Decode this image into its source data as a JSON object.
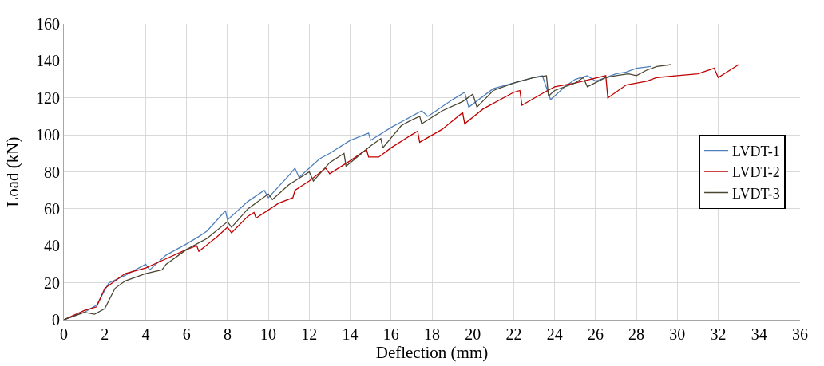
{
  "chart_data": {
    "type": "line",
    "xlabel": "Deflection (mm)",
    "ylabel": "Load (kN)",
    "xlim": [
      0,
      36
    ],
    "xticks": [
      0,
      2,
      4,
      6,
      8,
      10,
      12,
      14,
      16,
      18,
      20,
      22,
      24,
      26,
      28,
      30,
      32,
      34,
      36
    ],
    "ylim": [
      0,
      160
    ],
    "yticks": [
      0,
      20,
      40,
      60,
      80,
      100,
      120,
      140,
      160
    ],
    "grid": true,
    "legend": "right",
    "marker": "none",
    "line_style": "solid",
    "series": [
      {
        "name": "LVDT-1",
        "color": "#4f81bd",
        "x": [
          0,
          1,
          1.6,
          2.2,
          3,
          4,
          4.2,
          5,
          6,
          6.6,
          7,
          7.9,
          8,
          9,
          9.8,
          10,
          11,
          11.3,
          11.5,
          12.5,
          13,
          14,
          14.9,
          15,
          16,
          17,
          17.5,
          17.8,
          19,
          19.6,
          19.8,
          21,
          22,
          23,
          23.4,
          23.8,
          24.5,
          25,
          25.6,
          26,
          27,
          27.5,
          28,
          28.7
        ],
        "values": [
          0,
          4,
          8,
          20,
          24,
          30,
          27,
          35,
          41,
          45,
          48,
          59,
          54,
          64,
          70,
          66,
          78,
          82,
          77,
          87,
          90,
          97,
          101,
          97,
          104,
          110,
          113,
          110,
          119,
          123,
          115,
          125,
          128,
          131,
          132,
          119,
          126,
          130,
          132,
          129,
          133,
          134,
          136,
          137
        ]
      },
      {
        "name": "LVDT-2",
        "color": "#c00000",
        "x": [
          0,
          1,
          1.6,
          2,
          2.5,
          3,
          4,
          5,
          6,
          6.5,
          6.6,
          7.5,
          8,
          8.2,
          9,
          9.3,
          9.4,
          10.5,
          11.2,
          11.3,
          12,
          12.8,
          13,
          14,
          14.8,
          14.9,
          15.4,
          16,
          17,
          17.3,
          17.4,
          18.5,
          19.5,
          19.6,
          20.5,
          22,
          22.3,
          22.4,
          23.5,
          24,
          25,
          26.5,
          26.6,
          27.5,
          28.5,
          29,
          30,
          31,
          31.8,
          32,
          33
        ],
        "values": [
          0,
          5,
          7,
          17,
          21,
          25,
          28,
          33,
          38,
          40,
          37,
          45,
          50,
          47,
          56,
          58,
          55,
          63,
          66,
          70,
          75,
          82,
          79,
          86,
          92,
          88,
          88,
          93,
          100,
          102,
          96,
          103,
          112,
          106,
          114,
          123,
          124,
          116,
          123,
          126,
          128,
          132,
          120,
          127,
          129,
          131,
          132,
          133,
          136,
          131,
          138
        ]
      },
      {
        "name": "LVDT-3",
        "color": "#4a4632",
        "x": [
          0,
          1,
          1.5,
          2,
          2.5,
          3,
          4,
          4.8,
          5,
          6,
          7,
          8,
          8.2,
          9,
          10,
          10.2,
          11,
          12,
          12.2,
          13,
          13.7,
          13.8,
          15,
          15.5,
          15.6,
          16.5,
          17,
          17.4,
          17.5,
          18.5,
          19.5,
          20,
          20.2,
          21,
          22,
          23,
          23.6,
          23.7,
          24,
          25,
          25.4,
          25.6,
          26.5,
          27,
          27.6,
          28,
          28.5,
          29,
          29.7
        ],
        "values": [
          0,
          4,
          3,
          6,
          17,
          21,
          25,
          27,
          30,
          38,
          44,
          53,
          50,
          60,
          68,
          65,
          73,
          80,
          75,
          85,
          90,
          83,
          94,
          98,
          93,
          105,
          108,
          110,
          106,
          113,
          118,
          122,
          115,
          124,
          128,
          131,
          132,
          121,
          124,
          128,
          131,
          126,
          131,
          132,
          133,
          132,
          135,
          137,
          138
        ]
      }
    ]
  }
}
